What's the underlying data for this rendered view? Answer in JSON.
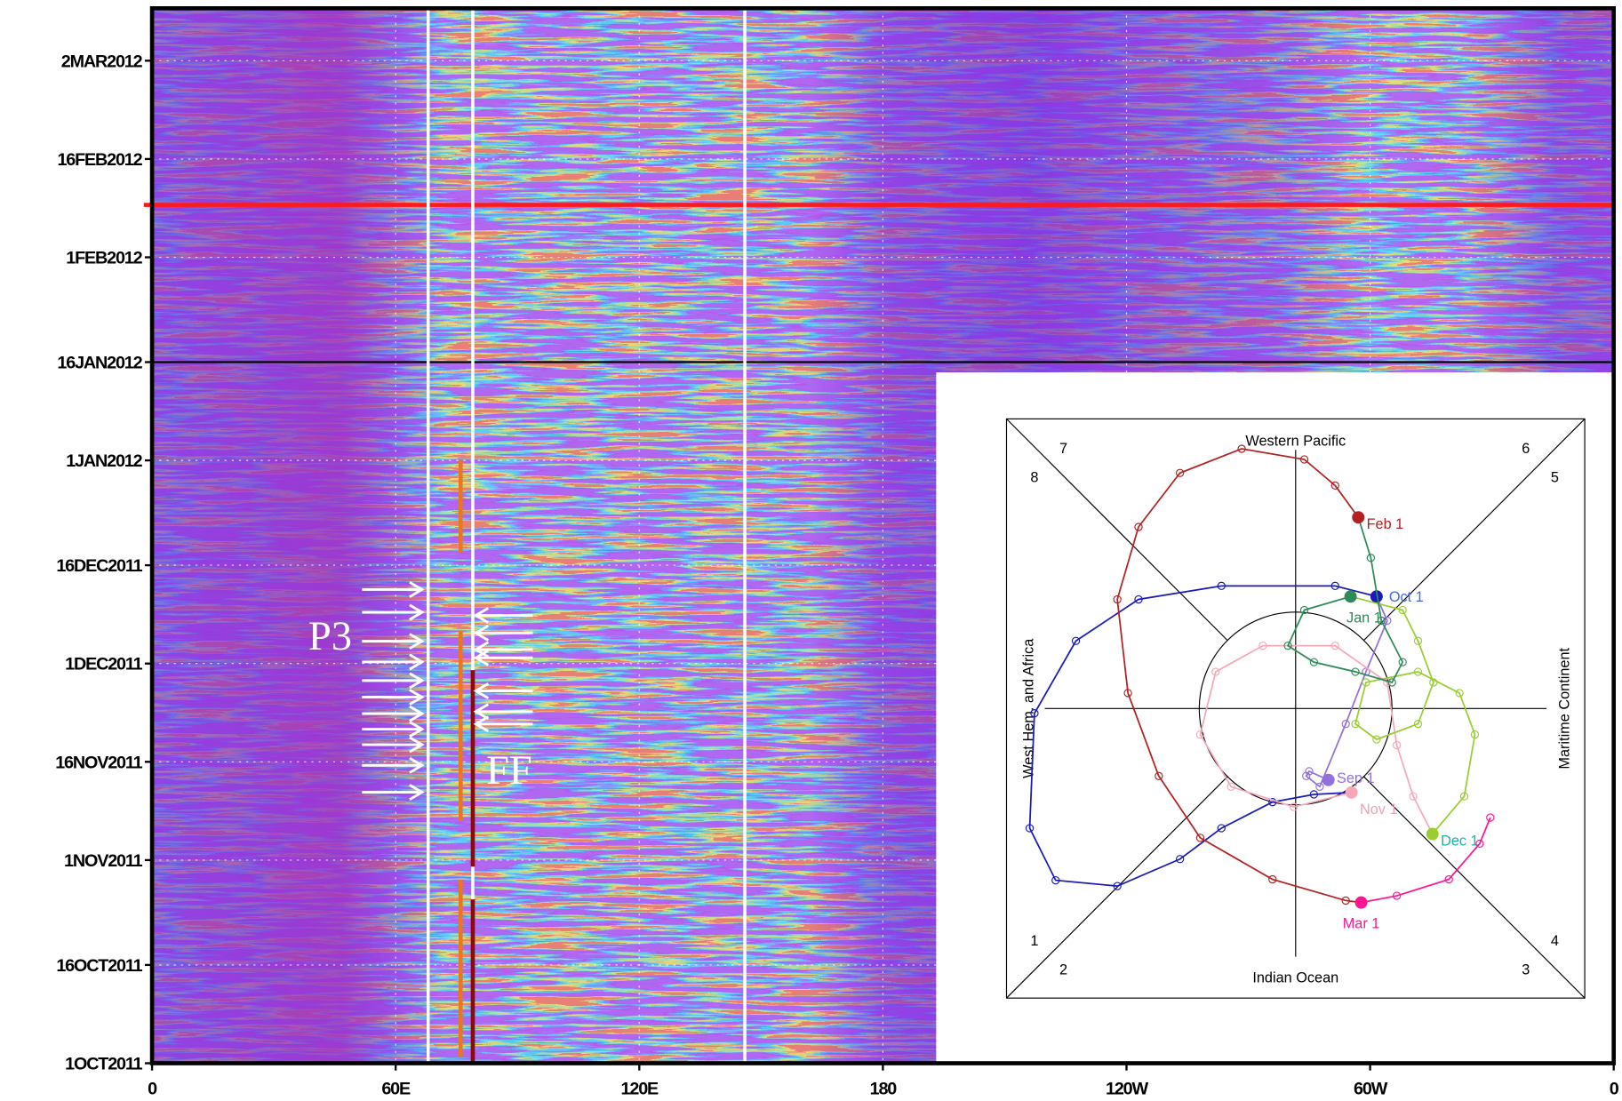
{
  "chart_data": [
    {
      "type": "heatmap",
      "xlim": [
        0,
        360
      ],
      "xticks": [
        0,
        {
          "value": 60,
          "label": "60E"
        },
        {
          "value": 120,
          "label": "120E"
        },
        180,
        {
          "value": 240,
          "label": "120W"
        },
        {
          "value": 300,
          "label": "60W"
        },
        {
          "value": 360,
          "label": "0"
        }
      ],
      "ylim": [
        "2011-10-01",
        "2012-03-10"
      ],
      "yticks": [
        {
          "value": "2011-10-01",
          "label": "1OCT2011"
        },
        {
          "value": "2011-10-16",
          "label": "16OCT2011"
        },
        {
          "value": "2011-11-01",
          "label": "1NOV2011"
        },
        {
          "value": "2011-11-16",
          "label": "16NOV2011"
        },
        {
          "value": "2011-12-01",
          "label": "1DEC2011"
        },
        {
          "value": "2011-12-16",
          "label": "16DEC2011"
        },
        {
          "value": "2012-01-01",
          "label": "1JAN2012"
        },
        {
          "value": "2012-01-16",
          "label": "16JAN2012"
        },
        {
          "value": "2012-02-01",
          "label": "1FEB2012"
        },
        {
          "value": "2012-02-16",
          "label": "16FEB2012"
        },
        {
          "value": "2012-03-02",
          "label": "2MAR2012"
        }
      ],
      "grid": true,
      "hlines": [
        {
          "value": "2012-02-09",
          "color": "#ff1a1a"
        },
        {
          "value": "2012-01-16",
          "color": "#000000"
        }
      ],
      "vlines": [
        68,
        79,
        146
      ],
      "periods": [
        {
          "lon": 76,
          "start": "2011-12-18",
          "end": "2012-01-01",
          "color": "#e8771e"
        },
        {
          "lon": 76,
          "start": "2011-11-07",
          "end": "2011-12-06",
          "color": "#e8771e"
        },
        {
          "lon": 76,
          "start": "2011-10-02",
          "end": "2011-10-29",
          "color": "#e8771e"
        },
        {
          "lon": 79,
          "start": "2011-10-31",
          "end": "2011-11-30",
          "color": "#8b0a0a"
        },
        {
          "lon": 79,
          "start": "2011-10-01",
          "end": "2011-10-26",
          "color": "#8b0a0a"
        }
      ],
      "annotations": [
        "P3",
        "FF"
      ]
    },
    {
      "type": "phase",
      "xlim": [
        -3,
        3
      ],
      "ylim": [
        -3,
        3
      ],
      "phase_labels": [
        "1",
        "2",
        "3",
        "4",
        "5",
        "6",
        "7",
        "8"
      ],
      "region_labels": [
        "Western Pacific",
        "Indian Ocean",
        "West Hem. and Africa",
        "Maritime Continent"
      ],
      "series": [
        {
          "label": "Sep 1",
          "color": "#9370db",
          "label_color": "#9370db",
          "x": [
            0.34,
            0.14,
            0.11,
            0.25,
            0.52,
            0.73,
            0.95,
            0.84
          ],
          "y": [
            -0.74,
            -0.65,
            -0.7,
            -0.81,
            -0.16,
            0.38,
            0.91,
            1.16
          ]
        },
        {
          "label": "Oct 1",
          "color": "#1a1ab8",
          "label_color": "#4169e1",
          "x": [
            0.84,
            0.41,
            -0.77,
            -1.63,
            -2.28,
            -2.71,
            -2.76,
            -2.49,
            -1.85,
            -1.2,
            -0.77,
            -0.24,
            0.19,
            0.58
          ],
          "y": [
            1.16,
            1.27,
            1.27,
            1.13,
            0.7,
            -0.05,
            -1.24,
            -1.78,
            -1.84,
            -1.56,
            -1.24,
            -0.97,
            -0.89,
            -0.87
          ]
        },
        {
          "label": "Nov 1",
          "color": "#f6a8b8",
          "label_color": "#f4a0b0",
          "x": [
            0.58,
            -0.02,
            -0.67,
            -0.99,
            -0.83,
            -0.34,
            0.41,
            0.95,
            1.05,
            1.22,
            1.42
          ],
          "y": [
            -0.87,
            -1.02,
            -0.81,
            -0.27,
            0.38,
            0.65,
            0.65,
            0.27,
            -0.38,
            -0.91,
            -1.3
          ]
        },
        {
          "label": "Dec 1",
          "color": "#9acd32",
          "label_color": "#20b2aa",
          "x": [
            1.42,
            1.75,
            1.86,
            1.7,
            1.27,
            0.73,
            0.62,
            0.84,
            1.27,
            1.43,
            1.27,
            1.11,
            0.57
          ],
          "y": [
            -1.3,
            -0.91,
            -0.27,
            0.16,
            0.38,
            0.27,
            -0.16,
            -0.32,
            -0.16,
            0.27,
            0.7,
            1.02,
            1.16
          ]
        },
        {
          "label": "Jan 1",
          "color": "#2e8b57",
          "label_color": "#2e8b57",
          "x": [
            0.57,
            0.09,
            -0.08,
            0.19,
            0.62,
            1.0,
            1.11,
            0.89,
            0.78,
            0.65
          ],
          "y": [
            1.16,
            1.02,
            0.65,
            0.48,
            0.38,
            0.27,
            0.48,
            0.91,
            1.56,
            1.98
          ]
        },
        {
          "label": "Feb 1",
          "color": "#b22222",
          "label_color": "#b22222",
          "x": [
            0.65,
            0.41,
            0.09,
            -0.56,
            -1.2,
            -1.63,
            -1.85,
            -1.74,
            -1.42,
            -0.99,
            -0.24,
            0.52,
            0.68
          ],
          "y": [
            1.98,
            2.31,
            2.58,
            2.69,
            2.44,
            1.88,
            1.13,
            0.16,
            -0.7,
            -1.34,
            -1.77,
            -1.99,
            -2.01
          ]
        },
        {
          "label": "Mar 1",
          "color": "#ff1493",
          "label_color": "#ff1493",
          "x": [
            0.68,
            1.05,
            1.59,
            1.91,
            2.02
          ],
          "y": [
            -2.01,
            -1.94,
            -1.77,
            -1.4,
            -1.13
          ]
        }
      ]
    }
  ]
}
